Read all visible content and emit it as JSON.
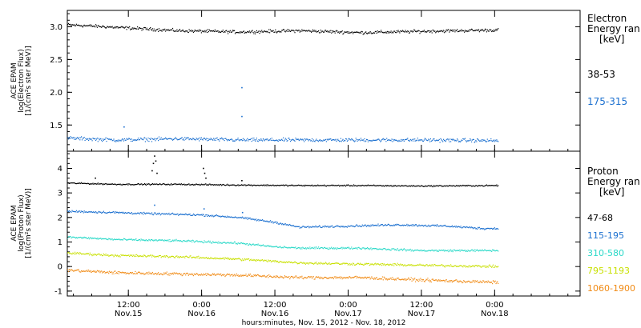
{
  "xaxis_label": "hours:minutes, Nov. 15, 2012 - Nov. 18, 2012",
  "x_ticks": [
    {
      "hours": 12,
      "time": "12:00",
      "date": "Nov.15"
    },
    {
      "hours": 24,
      "time": "0:00",
      "date": "Nov.16"
    },
    {
      "hours": 36,
      "time": "12:00",
      "date": "Nov.16"
    },
    {
      "hours": 48,
      "time": "0:00",
      "date": "Nov.17"
    },
    {
      "hours": 60,
      "time": "12:00",
      "date": "Nov.17"
    },
    {
      "hours": 72,
      "time": "0:00",
      "date": "Nov.18"
    }
  ],
  "chart_data": [
    {
      "type": "scatter",
      "panel": "electron",
      "ylabel_lines": [
        "ACE EPAM",
        "log(Electron Flux)",
        "[1/(cm²s ster MeV)]"
      ],
      "legend_title_lines": [
        "Electron",
        "Energy ran",
        "[keV]"
      ],
      "y_ticks": [
        "1.5",
        "2.0",
        "2.5",
        "3.0"
      ],
      "ylim": [
        1.1,
        3.25
      ],
      "x_unit": "hours since Nov. 15, 2012 00:00",
      "xlim": [
        2,
        86
      ],
      "grid": false,
      "legend_position": "right",
      "series": [
        {
          "name": "38-53",
          "color": "#000000",
          "level": 3.0,
          "noise": 0.035,
          "x": [
            2,
            10,
            20,
            30,
            40,
            50,
            60,
            72.5
          ],
          "y": [
            3.03,
            2.99,
            2.94,
            2.92,
            2.94,
            2.91,
            2.93,
            2.95
          ]
        },
        {
          "name": "175-315",
          "color": "#1a6fcf",
          "level": 1.27,
          "noise": 0.04,
          "x": [
            2,
            10,
            20,
            30,
            40,
            50,
            60,
            72.5
          ],
          "y": [
            1.3,
            1.27,
            1.29,
            1.27,
            1.27,
            1.27,
            1.27,
            1.26
          ]
        }
      ]
    },
    {
      "type": "scatter",
      "panel": "proton",
      "ylabel_lines": [
        "ACE EPAM",
        "log(Proton Flux)",
        "[1/(cm²s ster MeV)]"
      ],
      "legend_title_lines": [
        "Proton",
        "Energy ran",
        "[keV]"
      ],
      "y_ticks": [
        "-1",
        "0",
        "1",
        "2",
        "3",
        "4"
      ],
      "ylim": [
        -1.2,
        4.7
      ],
      "x_unit": "hours since Nov. 15, 2012 00:00",
      "xlim": [
        2,
        86
      ],
      "grid": false,
      "legend_position": "right",
      "series": [
        {
          "name": "47-68",
          "color": "#000000",
          "noise": 0.04,
          "x": [
            2,
            10,
            20,
            30,
            40,
            50,
            60,
            72.5
          ],
          "y": [
            3.4,
            3.35,
            3.35,
            3.32,
            3.3,
            3.3,
            3.28,
            3.3
          ]
        },
        {
          "name": "115-195",
          "color": "#1a6fcf",
          "noise": 0.06,
          "x": [
            2,
            10,
            16,
            24,
            30,
            36,
            40,
            48,
            56,
            64,
            70,
            72.5
          ],
          "y": [
            2.25,
            2.2,
            2.15,
            2.1,
            2.0,
            1.8,
            1.6,
            1.65,
            1.7,
            1.65,
            1.55,
            1.55
          ]
        },
        {
          "name": "310-580",
          "color": "#2bd9c8",
          "noise": 0.06,
          "x": [
            2,
            10,
            20,
            30,
            36,
            40,
            50,
            60,
            72.5
          ],
          "y": [
            1.2,
            1.1,
            1.05,
            0.95,
            0.8,
            0.75,
            0.75,
            0.65,
            0.65
          ]
        },
        {
          "name": "795-1193",
          "color": "#c8e000",
          "noise": 0.07,
          "x": [
            2,
            10,
            20,
            30,
            40,
            50,
            60,
            72.5
          ],
          "y": [
            0.55,
            0.45,
            0.4,
            0.3,
            0.15,
            0.1,
            0.05,
            0.0
          ]
        },
        {
          "name": "1060-1900",
          "color": "#f08a14",
          "noise": 0.09,
          "x": [
            2,
            10,
            20,
            30,
            40,
            50,
            60,
            72.5
          ],
          "y": [
            -0.15,
            -0.25,
            -0.3,
            -0.35,
            -0.45,
            -0.45,
            -0.55,
            -0.65
          ]
        }
      ],
      "spikes": [
        {
          "series": 0,
          "x": [
            6.5,
            15.8,
            16.0,
            16.2,
            16.4,
            16.6,
            24.2,
            24.4,
            24.6,
            30.5
          ],
          "y": [
            3.6,
            3.9,
            4.2,
            4.5,
            4.3,
            3.8,
            4.0,
            3.8,
            3.6,
            3.5
          ]
        },
        {
          "series": 1,
          "x": [
            16.2,
            24.3
          ],
          "y": [
            2.5,
            2.35
          ]
        },
        {
          "series": 1,
          "x": [
            30.6
          ],
          "y": [
            2.2
          ]
        }
      ]
    }
  ]
}
